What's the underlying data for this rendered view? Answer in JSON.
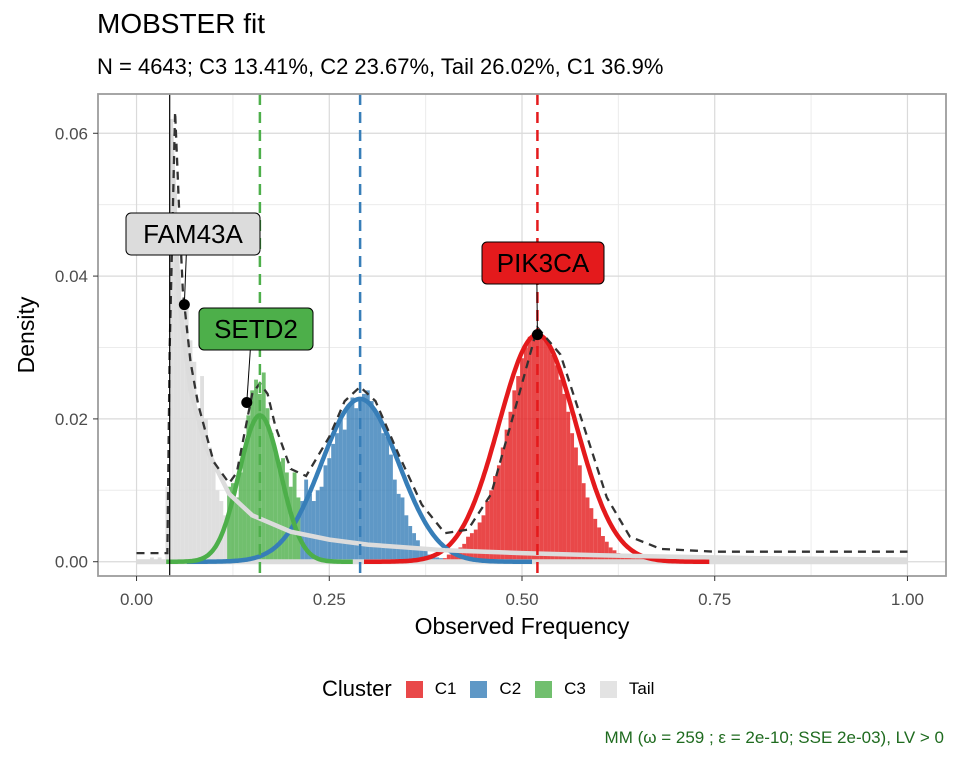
{
  "chart_data": {
    "type": "histogram",
    "title": "MOBSTER fit",
    "subtitle": "N = 4643; C3 13.41%, C2 23.67%, Tail 26.02%, C1 36.9%",
    "xlabel": "Observed Frequency",
    "ylabel": "Density",
    "xlim": [
      -0.05,
      1.05
    ],
    "ylim": [
      -0.002,
      0.0655
    ],
    "x_ticks": [
      0.0,
      0.25,
      0.5,
      0.75,
      1.0
    ],
    "x_tick_labels": [
      "0.00",
      "0.25",
      "0.50",
      "0.75",
      "1.00"
    ],
    "y_ticks": [
      0.0,
      0.02,
      0.04,
      0.06
    ],
    "y_tick_labels": [
      "0.00",
      "0.02",
      "0.04",
      "0.06"
    ],
    "grid": true,
    "legend_title": "Cluster",
    "legend_position": "bottom",
    "series": [
      {
        "name": "C1",
        "color": "#e41a1c",
        "mean": 0.52,
        "peak_density": 0.0318,
        "sd": 0.05,
        "weight": 0.369
      },
      {
        "name": "C2",
        "color": "#377eb8",
        "mean": 0.29,
        "peak_density": 0.0228,
        "sd": 0.05,
        "weight": 0.2367
      },
      {
        "name": "C3",
        "color": "#4daf4a",
        "mean": 0.16,
        "peak_density": 0.0205,
        "sd": 0.027,
        "weight": 0.1341
      },
      {
        "name": "Tail",
        "color": "#dcdcdc",
        "weight": 0.2602
      }
    ],
    "tail_density": [
      [
        0.045,
        0.06
      ],
      [
        0.055,
        0.037
      ],
      [
        0.07,
        0.024
      ],
      [
        0.09,
        0.016
      ],
      [
        0.12,
        0.0095
      ],
      [
        0.15,
        0.0065
      ],
      [
        0.2,
        0.0042
      ],
      [
        0.25,
        0.0031
      ],
      [
        0.3,
        0.0024
      ],
      [
        0.4,
        0.0016
      ],
      [
        0.5,
        0.0012
      ],
      [
        0.6,
        0.0009
      ],
      [
        0.7,
        0.0007
      ],
      [
        0.8,
        0.0005
      ],
      [
        0.9,
        0.0004
      ],
      [
        1.0,
        0.0003
      ]
    ],
    "mixture_density": [
      [
        0.0,
        0.0012
      ],
      [
        0.04,
        0.0012
      ],
      [
        0.043,
        0.03
      ],
      [
        0.05,
        0.063
      ],
      [
        0.055,
        0.05
      ],
      [
        0.06,
        0.038
      ],
      [
        0.07,
        0.028
      ],
      [
        0.08,
        0.022
      ],
      [
        0.1,
        0.014
      ],
      [
        0.12,
        0.011
      ],
      [
        0.13,
        0.0125
      ],
      [
        0.14,
        0.018
      ],
      [
        0.15,
        0.0235
      ],
      [
        0.16,
        0.025
      ],
      [
        0.17,
        0.0235
      ],
      [
        0.18,
        0.019
      ],
      [
        0.2,
        0.013
      ],
      [
        0.22,
        0.012
      ],
      [
        0.25,
        0.0175
      ],
      [
        0.27,
        0.0225
      ],
      [
        0.29,
        0.0245
      ],
      [
        0.31,
        0.0225
      ],
      [
        0.34,
        0.015
      ],
      [
        0.37,
        0.008
      ],
      [
        0.4,
        0.004
      ],
      [
        0.43,
        0.0045
      ],
      [
        0.46,
        0.0095
      ],
      [
        0.49,
        0.021
      ],
      [
        0.52,
        0.0328
      ],
      [
        0.55,
        0.029
      ],
      [
        0.58,
        0.019
      ],
      [
        0.61,
        0.009
      ],
      [
        0.64,
        0.0035
      ],
      [
        0.68,
        0.0018
      ],
      [
        0.75,
        0.0014
      ],
      [
        1.0,
        0.0014
      ]
    ],
    "histogram_bars": [
      {
        "x": 0.02,
        "y": 0.0006,
        "cluster": "Tail"
      },
      {
        "x": 0.03,
        "y": 0.0006,
        "cluster": "Tail"
      },
      {
        "x": 0.04,
        "y": 0.0105,
        "cluster": "Tail"
      },
      {
        "x": 0.045,
        "y": 0.062,
        "cluster": "Tail"
      },
      {
        "x": 0.05,
        "y": 0.052,
        "cluster": "Tail"
      },
      {
        "x": 0.055,
        "y": 0.04,
        "cluster": "Tail"
      },
      {
        "x": 0.06,
        "y": 0.036,
        "cluster": "Tail"
      },
      {
        "x": 0.065,
        "y": 0.0355,
        "cluster": "Tail"
      },
      {
        "x": 0.07,
        "y": 0.031,
        "cluster": "Tail"
      },
      {
        "x": 0.075,
        "y": 0.028,
        "cluster": "Tail"
      },
      {
        "x": 0.08,
        "y": 0.02,
        "cluster": "Tail"
      },
      {
        "x": 0.085,
        "y": 0.026,
        "cluster": "Tail"
      },
      {
        "x": 0.09,
        "y": 0.02,
        "cluster": "Tail"
      },
      {
        "x": 0.095,
        "y": 0.016,
        "cluster": "Tail"
      },
      {
        "x": 0.1,
        "y": 0.0135,
        "cluster": "Tail"
      },
      {
        "x": 0.105,
        "y": 0.01,
        "cluster": "Tail"
      },
      {
        "x": 0.11,
        "y": 0.0085,
        "cluster": "Tail"
      },
      {
        "x": 0.115,
        "y": 0.0065,
        "cluster": "Tail"
      },
      {
        "x": 0.12,
        "y": 0.0105,
        "cluster": "C3"
      },
      {
        "x": 0.125,
        "y": 0.011,
        "cluster": "C3"
      },
      {
        "x": 0.13,
        "y": 0.009,
        "cluster": "C3"
      },
      {
        "x": 0.135,
        "y": 0.0125,
        "cluster": "C3"
      },
      {
        "x": 0.14,
        "y": 0.0155,
        "cluster": "C3"
      },
      {
        "x": 0.145,
        "y": 0.0205,
        "cluster": "C3"
      },
      {
        "x": 0.15,
        "y": 0.024,
        "cluster": "C3"
      },
      {
        "x": 0.155,
        "y": 0.0255,
        "cluster": "C3"
      },
      {
        "x": 0.16,
        "y": 0.0235,
        "cluster": "C3"
      },
      {
        "x": 0.165,
        "y": 0.0265,
        "cluster": "C3"
      },
      {
        "x": 0.17,
        "y": 0.0215,
        "cluster": "C3"
      },
      {
        "x": 0.175,
        "y": 0.018,
        "cluster": "C3"
      },
      {
        "x": 0.18,
        "y": 0.0155,
        "cluster": "C3"
      },
      {
        "x": 0.185,
        "y": 0.014,
        "cluster": "C3"
      },
      {
        "x": 0.19,
        "y": 0.0145,
        "cluster": "C3"
      },
      {
        "x": 0.195,
        "y": 0.0125,
        "cluster": "C3"
      },
      {
        "x": 0.2,
        "y": 0.0105,
        "cluster": "C3"
      },
      {
        "x": 0.205,
        "y": 0.0125,
        "cluster": "C3"
      },
      {
        "x": 0.21,
        "y": 0.009,
        "cluster": "C3"
      },
      {
        "x": 0.215,
        "y": 0.0085,
        "cluster": "C2"
      },
      {
        "x": 0.22,
        "y": 0.0115,
        "cluster": "C2"
      },
      {
        "x": 0.225,
        "y": 0.0095,
        "cluster": "C2"
      },
      {
        "x": 0.23,
        "y": 0.0085,
        "cluster": "C2"
      },
      {
        "x": 0.235,
        "y": 0.01,
        "cluster": "C2"
      },
      {
        "x": 0.24,
        "y": 0.0105,
        "cluster": "C2"
      },
      {
        "x": 0.245,
        "y": 0.0135,
        "cluster": "C2"
      },
      {
        "x": 0.25,
        "y": 0.0145,
        "cluster": "C2"
      },
      {
        "x": 0.255,
        "y": 0.0165,
        "cluster": "C2"
      },
      {
        "x": 0.26,
        "y": 0.018,
        "cluster": "C2"
      },
      {
        "x": 0.265,
        "y": 0.02,
        "cluster": "C2"
      },
      {
        "x": 0.27,
        "y": 0.0185,
        "cluster": "C2"
      },
      {
        "x": 0.275,
        "y": 0.022,
        "cluster": "C2"
      },
      {
        "x": 0.28,
        "y": 0.023,
        "cluster": "C2"
      },
      {
        "x": 0.285,
        "y": 0.0215,
        "cluster": "C2"
      },
      {
        "x": 0.29,
        "y": 0.0225,
        "cluster": "C2"
      },
      {
        "x": 0.295,
        "y": 0.0235,
        "cluster": "C2"
      },
      {
        "x": 0.3,
        "y": 0.024,
        "cluster": "C2"
      },
      {
        "x": 0.305,
        "y": 0.0225,
        "cluster": "C2"
      },
      {
        "x": 0.31,
        "y": 0.021,
        "cluster": "C2"
      },
      {
        "x": 0.315,
        "y": 0.0205,
        "cluster": "C2"
      },
      {
        "x": 0.32,
        "y": 0.018,
        "cluster": "C2"
      },
      {
        "x": 0.325,
        "y": 0.0175,
        "cluster": "C2"
      },
      {
        "x": 0.33,
        "y": 0.015,
        "cluster": "C2"
      },
      {
        "x": 0.335,
        "y": 0.0115,
        "cluster": "C2"
      },
      {
        "x": 0.34,
        "y": 0.0095,
        "cluster": "C2"
      },
      {
        "x": 0.345,
        "y": 0.009,
        "cluster": "C2"
      },
      {
        "x": 0.35,
        "y": 0.0065,
        "cluster": "C2"
      },
      {
        "x": 0.355,
        "y": 0.005,
        "cluster": "C2"
      },
      {
        "x": 0.36,
        "y": 0.004,
        "cluster": "C2"
      },
      {
        "x": 0.365,
        "y": 0.003,
        "cluster": "C2"
      },
      {
        "x": 0.37,
        "y": 0.002,
        "cluster": "C2"
      },
      {
        "x": 0.375,
        "y": 0.0015,
        "cluster": "C2"
      },
      {
        "x": 0.38,
        "y": 0.001,
        "cluster": "C2"
      },
      {
        "x": 0.385,
        "y": 0.0008,
        "cluster": "C2"
      },
      {
        "x": 0.39,
        "y": 0.0006,
        "cluster": "C2"
      },
      {
        "x": 0.395,
        "y": 0.0005,
        "cluster": "C2"
      },
      {
        "x": 0.4,
        "y": 0.0005,
        "cluster": "C1"
      },
      {
        "x": 0.405,
        "y": 0.001,
        "cluster": "C1"
      },
      {
        "x": 0.41,
        "y": 0.0012,
        "cluster": "C1"
      },
      {
        "x": 0.415,
        "y": 0.0015,
        "cluster": "C1"
      },
      {
        "x": 0.42,
        "y": 0.002,
        "cluster": "C1"
      },
      {
        "x": 0.425,
        "y": 0.0025,
        "cluster": "C1"
      },
      {
        "x": 0.43,
        "y": 0.0035,
        "cluster": "C1"
      },
      {
        "x": 0.435,
        "y": 0.004,
        "cluster": "C1"
      },
      {
        "x": 0.44,
        "y": 0.0045,
        "cluster": "C1"
      },
      {
        "x": 0.445,
        "y": 0.0055,
        "cluster": "C1"
      },
      {
        "x": 0.45,
        "y": 0.0065,
        "cluster": "C1"
      },
      {
        "x": 0.455,
        "y": 0.0085,
        "cluster": "C1"
      },
      {
        "x": 0.46,
        "y": 0.01,
        "cluster": "C1"
      },
      {
        "x": 0.465,
        "y": 0.012,
        "cluster": "C1"
      },
      {
        "x": 0.47,
        "y": 0.0135,
        "cluster": "C1"
      },
      {
        "x": 0.475,
        "y": 0.016,
        "cluster": "C1"
      },
      {
        "x": 0.48,
        "y": 0.0185,
        "cluster": "C1"
      },
      {
        "x": 0.485,
        "y": 0.021,
        "cluster": "C1"
      },
      {
        "x": 0.49,
        "y": 0.024,
        "cluster": "C1"
      },
      {
        "x": 0.495,
        "y": 0.026,
        "cluster": "C1"
      },
      {
        "x": 0.5,
        "y": 0.0285,
        "cluster": "C1"
      },
      {
        "x": 0.505,
        "y": 0.03,
        "cluster": "C1"
      },
      {
        "x": 0.51,
        "y": 0.0315,
        "cluster": "C1"
      },
      {
        "x": 0.515,
        "y": 0.032,
        "cluster": "C1"
      },
      {
        "x": 0.52,
        "y": 0.0325,
        "cluster": "C1"
      },
      {
        "x": 0.525,
        "y": 0.0315,
        "cluster": "C1"
      },
      {
        "x": 0.53,
        "y": 0.031,
        "cluster": "C1"
      },
      {
        "x": 0.535,
        "y": 0.0305,
        "cluster": "C1"
      },
      {
        "x": 0.54,
        "y": 0.029,
        "cluster": "C1"
      },
      {
        "x": 0.545,
        "y": 0.0275,
        "cluster": "C1"
      },
      {
        "x": 0.55,
        "y": 0.0255,
        "cluster": "C1"
      },
      {
        "x": 0.555,
        "y": 0.0235,
        "cluster": "C1"
      },
      {
        "x": 0.56,
        "y": 0.021,
        "cluster": "C1"
      },
      {
        "x": 0.565,
        "y": 0.018,
        "cluster": "C1"
      },
      {
        "x": 0.57,
        "y": 0.016,
        "cluster": "C1"
      },
      {
        "x": 0.575,
        "y": 0.0135,
        "cluster": "C1"
      },
      {
        "x": 0.58,
        "y": 0.011,
        "cluster": "C1"
      },
      {
        "x": 0.585,
        "y": 0.009,
        "cluster": "C1"
      },
      {
        "x": 0.59,
        "y": 0.0075,
        "cluster": "C1"
      },
      {
        "x": 0.595,
        "y": 0.006,
        "cluster": "C1"
      },
      {
        "x": 0.6,
        "y": 0.0048,
        "cluster": "C1"
      },
      {
        "x": 0.605,
        "y": 0.0036,
        "cluster": "C1"
      },
      {
        "x": 0.61,
        "y": 0.0028,
        "cluster": "C1"
      },
      {
        "x": 0.615,
        "y": 0.002,
        "cluster": "C1"
      },
      {
        "x": 0.62,
        "y": 0.0016,
        "cluster": "C1"
      },
      {
        "x": 0.625,
        "y": 0.0012,
        "cluster": "C1"
      },
      {
        "x": 0.63,
        "y": 0.001,
        "cluster": "C1"
      },
      {
        "x": 0.635,
        "y": 0.0008,
        "cluster": "C1"
      },
      {
        "x": 0.64,
        "y": 0.0006,
        "cluster": "C1"
      },
      {
        "x": 0.645,
        "y": 0.0005,
        "cluster": "C1"
      },
      {
        "x": 0.65,
        "y": 0.0005,
        "cluster": "C1"
      },
      {
        "x": 0.655,
        "y": 0.0005,
        "cluster": "C1"
      },
      {
        "x": 0.66,
        "y": 0.0004,
        "cluster": "C1"
      },
      {
        "x": 0.665,
        "y": 0.0004,
        "cluster": "C1"
      },
      {
        "x": 0.67,
        "y": 0.0004,
        "cluster": "C1"
      }
    ],
    "vlines": [
      {
        "x": 0.043,
        "color": "#000000"
      },
      {
        "x": 0.16,
        "color": "#4daf4a"
      },
      {
        "x": 0.29,
        "color": "#377eb8"
      },
      {
        "x": 0.52,
        "color": "#e41a1c"
      }
    ],
    "annotations": [
      {
        "label": "FAM43A",
        "point_x": 0.062,
        "point_y": 0.036,
        "fill": "#dcdcdc",
        "text_color": "#000000"
      },
      {
        "label": "SETD2",
        "point_x": 0.143,
        "point_y": 0.0223,
        "fill": "#4daf4a",
        "text_color": "#000000"
      },
      {
        "label": "PIK3CA",
        "point_x": 0.52,
        "point_y": 0.0318,
        "fill": "#e41a1c",
        "text_color": "#000000"
      }
    ]
  },
  "legend": {
    "title": "Cluster",
    "items": [
      {
        "label": "C1",
        "color": "#e41a1c"
      },
      {
        "label": "C2",
        "color": "#377eb8"
      },
      {
        "label": "C3",
        "color": "#4daf4a"
      },
      {
        "label": "Tail",
        "color": "#dcdcdc"
      }
    ]
  },
  "caption": "MM (ω = 259 ; ε = 2e-10; SSE 2e-03), LV > 0"
}
